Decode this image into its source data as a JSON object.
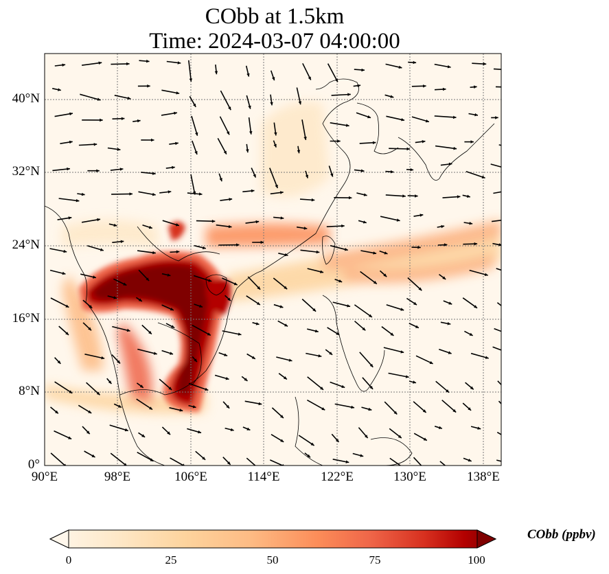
{
  "title": {
    "line1": "CObb at 1.5km",
    "line2": "Time: 2024-03-07 04:00:00"
  },
  "map": {
    "projection": "PlateCarree",
    "lon_range": [
      90,
      140
    ],
    "lat_range": [
      0,
      45
    ],
    "x_ticks": [
      "90°E",
      "98°E",
      "106°E",
      "114°E",
      "122°E",
      "130°E",
      "138°E"
    ],
    "y_ticks": [
      "0°",
      "8°N",
      "16°N",
      "24°N",
      "32°N",
      "40°N"
    ],
    "gridlines": "dotted",
    "field_variable": "CObb",
    "field_colormap": "OrRd",
    "vectors": "wind arrows",
    "colors": {
      "background_low": "#fff7ec",
      "mid": "#fc8d59",
      "high": "#7f0000",
      "coastline": "#000000"
    }
  },
  "colorbar": {
    "label": "CObb (ppbv)",
    "ticks": [
      "0",
      "25",
      "50",
      "75",
      "100"
    ],
    "range": [
      0,
      100
    ],
    "extend": "both"
  }
}
